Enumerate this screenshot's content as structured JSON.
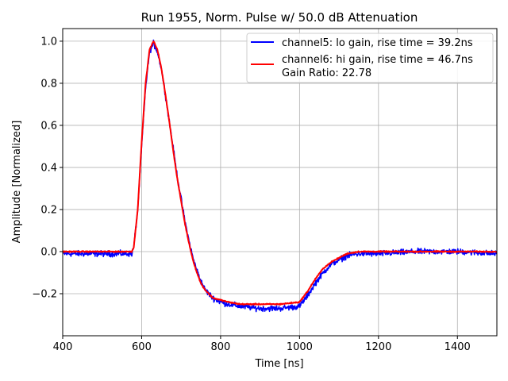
{
  "chart_data": {
    "type": "line",
    "title": "Run 1955, Norm. Pulse w/ 50.0 dB Attenuation",
    "xlabel": "Time [ns]",
    "ylabel": "Amplitude [Normalized]",
    "xlim": [
      400,
      1500
    ],
    "ylim": [
      -0.4,
      1.06
    ],
    "grid": true,
    "legend_position": "top-right",
    "xticks": [
      400,
      600,
      800,
      1000,
      1200,
      1400
    ],
    "xtick_labels": [
      "400",
      "600",
      "800",
      "1000",
      "1200",
      "1400"
    ],
    "yticks": [
      -0.2,
      0.0,
      0.2,
      0.4,
      0.6,
      0.8,
      1.0
    ],
    "ytick_labels": [
      "−0.2",
      "0.0",
      "0.2",
      "0.4",
      "0.6",
      "0.8",
      "1.0"
    ],
    "series": [
      {
        "name": "channel5: lo gain, rise time = 39.2ns",
        "color": "#0000ff",
        "noise_amplitude": 0.02,
        "x": [
          400,
          500,
          575,
          580,
          590,
          600,
          610,
          620,
          630,
          640,
          650,
          660,
          670,
          680,
          690,
          700,
          710,
          720,
          730,
          740,
          750,
          760,
          780,
          800,
          820,
          850,
          900,
          950,
          1000,
          1020,
          1040,
          1060,
          1080,
          1100,
          1120,
          1150,
          1200,
          1300,
          1400,
          1500
        ],
        "values": [
          -0.01,
          -0.01,
          -0.01,
          0.02,
          0.2,
          0.5,
          0.78,
          0.95,
          0.99,
          0.95,
          0.87,
          0.75,
          0.62,
          0.49,
          0.36,
          0.25,
          0.14,
          0.05,
          -0.03,
          -0.09,
          -0.14,
          -0.18,
          -0.22,
          -0.24,
          -0.25,
          -0.26,
          -0.27,
          -0.27,
          -0.26,
          -0.21,
          -0.15,
          -0.1,
          -0.06,
          -0.04,
          -0.02,
          -0.01,
          -0.01,
          0.0,
          0.0,
          -0.01
        ]
      },
      {
        "name": "channel6: hi gain, rise time = 46.7ns",
        "color": "#ff0000",
        "noise_amplitude": 0.004,
        "x": [
          400,
          500,
          575,
          580,
          590,
          600,
          610,
          620,
          630,
          640,
          650,
          660,
          670,
          680,
          690,
          700,
          710,
          720,
          730,
          740,
          750,
          760,
          780,
          800,
          820,
          850,
          900,
          950,
          1000,
          1020,
          1040,
          1060,
          1080,
          1100,
          1120,
          1150,
          1200,
          1300,
          1400,
          1500
        ],
        "values": [
          0.0,
          0.0,
          0.0,
          0.02,
          0.2,
          0.52,
          0.8,
          0.96,
          1.0,
          0.96,
          0.87,
          0.75,
          0.62,
          0.48,
          0.35,
          0.24,
          0.13,
          0.04,
          -0.04,
          -0.1,
          -0.15,
          -0.18,
          -0.22,
          -0.23,
          -0.24,
          -0.25,
          -0.25,
          -0.25,
          -0.24,
          -0.19,
          -0.13,
          -0.08,
          -0.05,
          -0.03,
          -0.01,
          0.0,
          0.0,
          0.0,
          0.0,
          0.0
        ]
      }
    ],
    "legend_extra": "Gain Ratio: 22.78"
  }
}
